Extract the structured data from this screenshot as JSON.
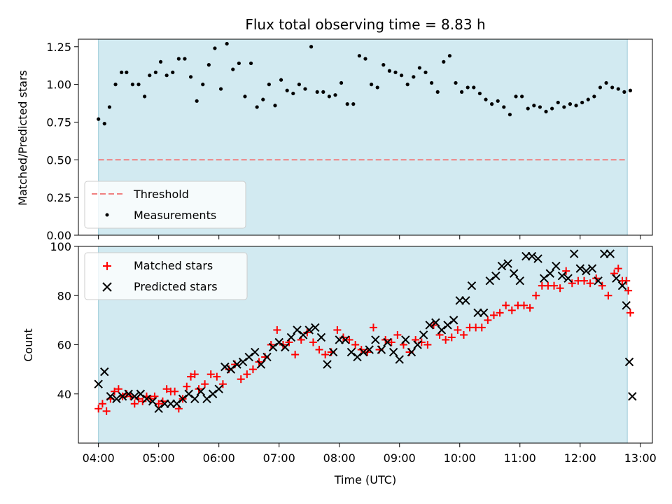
{
  "chart_data": [
    {
      "type": "scatter",
      "title": "Flux total observing time = 8.83 h",
      "ylabel": "Matched/Predicted stars",
      "xlabel": "",
      "ylim": [
        0,
        1.3
      ],
      "yticks": [
        "0.00",
        "0.25",
        "0.50",
        "0.75",
        "1.00",
        "1.25"
      ],
      "observing_window": [
        "04:00",
        "12:47"
      ],
      "threshold": {
        "name": "Threshold",
        "value": 0.5,
        "color": "#f08080",
        "style": "dashed"
      },
      "series": [
        {
          "name": "Measurements",
          "color": "#000000",
          "marker": "dot",
          "x": [
            "04:00",
            "04:06",
            "04:11",
            "04:17",
            "04:23",
            "04:28",
            "04:34",
            "04:40",
            "04:46",
            "04:51",
            "04:57",
            "05:02",
            "05:08",
            "05:14",
            "05:20",
            "05:26",
            "05:32",
            "05:38",
            "05:44",
            "05:50",
            "05:56",
            "06:02",
            "06:08",
            "06:14",
            "06:20",
            "06:26",
            "06:32",
            "06:38",
            "06:44",
            "06:50",
            "06:56",
            "07:02",
            "07:08",
            "07:14",
            "07:20",
            "07:26",
            "07:32",
            "07:38",
            "07:44",
            "07:50",
            "07:56",
            "08:02",
            "08:08",
            "08:14",
            "08:20",
            "08:26",
            "08:32",
            "08:38",
            "08:44",
            "08:50",
            "08:56",
            "09:02",
            "09:08",
            "09:14",
            "09:20",
            "09:26",
            "09:32",
            "09:38",
            "09:44",
            "09:50",
            "09:56",
            "10:02",
            "10:08",
            "10:14",
            "10:20",
            "10:26",
            "10:32",
            "10:38",
            "10:44",
            "10:50",
            "10:56",
            "11:02",
            "11:08",
            "11:14",
            "11:20",
            "11:26",
            "11:32",
            "11:38",
            "11:44",
            "11:50",
            "11:56",
            "12:02",
            "12:08",
            "12:14",
            "12:20",
            "12:26",
            "12:32",
            "12:38",
            "12:44",
            "12:50"
          ],
          "values": [
            0.77,
            0.74,
            0.85,
            1.0,
            1.08,
            1.08,
            1.0,
            1.0,
            0.92,
            1.06,
            1.08,
            1.15,
            1.06,
            1.08,
            1.17,
            1.17,
            1.05,
            0.89,
            1.0,
            1.13,
            1.24,
            0.97,
            1.27,
            1.1,
            1.14,
            0.92,
            1.14,
            0.85,
            0.9,
            1.0,
            0.86,
            1.03,
            0.96,
            0.94,
            1.0,
            0.97,
            1.25,
            0.95,
            0.95,
            0.92,
            0.93,
            1.01,
            0.87,
            0.87,
            1.19,
            1.17,
            1.0,
            0.98,
            1.13,
            1.09,
            1.08,
            1.06,
            1.0,
            1.05,
            1.11,
            1.08,
            1.01,
            0.95,
            1.15,
            1.19,
            1.01,
            0.95,
            0.98,
            0.98,
            0.94,
            0.9,
            0.87,
            0.89,
            0.85,
            0.8,
            0.92,
            0.92,
            0.84,
            0.86,
            0.85,
            0.82,
            0.84,
            0.88,
            0.85,
            0.87,
            0.86,
            0.88,
            0.9,
            0.92,
            0.98,
            1.01,
            0.98,
            0.97,
            0.95,
            0.96
          ]
        }
      ],
      "legend": {
        "position": "lower-left",
        "entries": [
          "Threshold",
          "Measurements"
        ]
      },
      "grid": false
    },
    {
      "type": "scatter",
      "title": "",
      "ylabel": "Count",
      "xlabel": "Time (UTC)",
      "ylim": [
        20,
        100
      ],
      "yticks": [
        "40",
        "60",
        "80",
        "100"
      ],
      "xticks": [
        "04:00",
        "05:00",
        "06:00",
        "07:00",
        "08:00",
        "09:00",
        "10:00",
        "11:00",
        "12:00",
        "13:00"
      ],
      "observing_window": [
        "04:00",
        "12:47"
      ],
      "series": [
        {
          "name": "Matched stars",
          "color": "#ff0000",
          "marker": "plus",
          "x": [
            "04:00",
            "04:04",
            "04:08",
            "04:12",
            "04:16",
            "04:20",
            "04:24",
            "04:28",
            "04:32",
            "04:36",
            "04:40",
            "04:44",
            "04:48",
            "04:52",
            "04:56",
            "05:00",
            "05:04",
            "05:08",
            "05:12",
            "05:16",
            "05:20",
            "05:24",
            "05:28",
            "05:32",
            "05:36",
            "05:40",
            "05:46",
            "05:52",
            "05:58",
            "06:04",
            "06:10",
            "06:16",
            "06:22",
            "06:28",
            "06:34",
            "06:40",
            "06:46",
            "06:52",
            "06:58",
            "07:04",
            "07:10",
            "07:16",
            "07:22",
            "07:28",
            "07:34",
            "07:40",
            "07:46",
            "07:52",
            "07:58",
            "08:04",
            "08:10",
            "08:16",
            "08:22",
            "08:28",
            "08:34",
            "08:40",
            "08:46",
            "08:52",
            "08:58",
            "09:04",
            "09:10",
            "09:16",
            "09:22",
            "09:28",
            "09:34",
            "09:40",
            "09:46",
            "09:52",
            "09:58",
            "10:04",
            "10:10",
            "10:16",
            "10:22",
            "10:28",
            "10:34",
            "10:40",
            "10:46",
            "10:52",
            "10:58",
            "11:04",
            "11:10",
            "11:16",
            "11:22",
            "11:28",
            "11:34",
            "11:40",
            "11:46",
            "11:52",
            "11:58",
            "12:04",
            "12:10",
            "12:16",
            "12:22",
            "12:28",
            "12:34",
            "12:38",
            "12:42",
            "12:46",
            "12:48",
            "12:50"
          ],
          "values": [
            34,
            36,
            33,
            38,
            41,
            42,
            39,
            40,
            39,
            36,
            38,
            37,
            39,
            38,
            39,
            36,
            37,
            42,
            41,
            41,
            34,
            38,
            43,
            47,
            48,
            42,
            44,
            48,
            47,
            44,
            50,
            52,
            46,
            48,
            50,
            53,
            55,
            60,
            66,
            60,
            61,
            56,
            62,
            65,
            61,
            58,
            56,
            57,
            66,
            63,
            62,
            60,
            58,
            57,
            67,
            58,
            62,
            61,
            64,
            60,
            57,
            62,
            61,
            60,
            68,
            64,
            62,
            63,
            66,
            64,
            67,
            67,
            67,
            70,
            72,
            73,
            76,
            74,
            76,
            76,
            75,
            80,
            84,
            84,
            84,
            83,
            90,
            85,
            86,
            86,
            85,
            87,
            84,
            80,
            89,
            91,
            86,
            86,
            82,
            73
          ]
        },
        {
          "name": "Predicted stars",
          "color": "#000000",
          "marker": "x",
          "x": [
            "04:00",
            "04:06",
            "04:12",
            "04:18",
            "04:24",
            "04:30",
            "04:36",
            "04:42",
            "04:48",
            "04:54",
            "05:00",
            "05:06",
            "05:12",
            "05:18",
            "05:24",
            "05:30",
            "05:36",
            "05:42",
            "05:48",
            "05:54",
            "06:00",
            "06:06",
            "06:12",
            "06:18",
            "06:24",
            "06:30",
            "06:36",
            "06:42",
            "06:48",
            "06:54",
            "07:00",
            "07:06",
            "07:12",
            "07:18",
            "07:24",
            "07:30",
            "07:36",
            "07:42",
            "07:48",
            "07:54",
            "08:00",
            "08:06",
            "08:12",
            "08:18",
            "08:24",
            "08:30",
            "08:36",
            "08:42",
            "08:48",
            "08:54",
            "09:00",
            "09:06",
            "09:12",
            "09:18",
            "09:24",
            "09:30",
            "09:36",
            "09:42",
            "09:48",
            "09:54",
            "10:00",
            "10:06",
            "10:12",
            "10:18",
            "10:24",
            "10:30",
            "10:36",
            "10:42",
            "10:48",
            "10:54",
            "11:00",
            "11:06",
            "11:12",
            "11:18",
            "11:24",
            "11:30",
            "11:36",
            "11:42",
            "11:48",
            "11:54",
            "12:00",
            "12:06",
            "12:12",
            "12:18",
            "12:24",
            "12:30",
            "12:36",
            "12:42",
            "12:46",
            "12:49",
            "12:52"
          ],
          "values": [
            44,
            49,
            39,
            38,
            39,
            40,
            39,
            40,
            38,
            37,
            34,
            36,
            36,
            36,
            38,
            40,
            38,
            41,
            38,
            40,
            42,
            51,
            50,
            52,
            53,
            55,
            57,
            52,
            55,
            59,
            61,
            59,
            63,
            66,
            64,
            66,
            67,
            63,
            52,
            57,
            62,
            62,
            57,
            55,
            57,
            58,
            62,
            58,
            61,
            57,
            54,
            62,
            57,
            60,
            64,
            68,
            69,
            66,
            68,
            70,
            78,
            78,
            84,
            73,
            73,
            86,
            88,
            92,
            93,
            89,
            86,
            96,
            96,
            95,
            87,
            89,
            92,
            88,
            87,
            97,
            91,
            90,
            91,
            86,
            97,
            97,
            87,
            84,
            76,
            53,
            39
          ]
        }
      ],
      "legend": {
        "position": "upper-left",
        "entries": [
          "Matched stars",
          "Predicted stars"
        ]
      },
      "grid": false
    }
  ]
}
